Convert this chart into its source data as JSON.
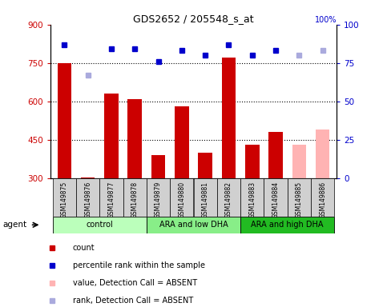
{
  "title": "GDS2652 / 205548_s_at",
  "samples": [
    "GSM149875",
    "GSM149876",
    "GSM149877",
    "GSM149878",
    "GSM149879",
    "GSM149880",
    "GSM149881",
    "GSM149882",
    "GSM149883",
    "GSM149884",
    "GSM149885",
    "GSM149886"
  ],
  "bar_values": [
    750,
    302,
    630,
    610,
    390,
    580,
    400,
    770,
    430,
    480,
    430,
    490
  ],
  "bar_colors": [
    "#cc0000",
    "#cc0000",
    "#cc0000",
    "#cc0000",
    "#cc0000",
    "#cc0000",
    "#cc0000",
    "#cc0000",
    "#cc0000",
    "#cc0000",
    "#ffb3b3",
    "#ffb3b3"
  ],
  "rank_values": [
    87,
    67,
    84,
    84,
    76,
    83,
    80,
    87,
    80,
    83,
    80,
    83
  ],
  "rank_absent": [
    false,
    true,
    false,
    false,
    false,
    false,
    false,
    false,
    false,
    false,
    true,
    true
  ],
  "ylim_left": [
    300,
    900
  ],
  "ylim_right": [
    0,
    100
  ],
  "yticks_left": [
    300,
    450,
    600,
    750,
    900
  ],
  "yticks_right": [
    0,
    25,
    50,
    75,
    100
  ],
  "grid_lines": [
    750,
    600,
    450
  ],
  "groups": [
    {
      "label": "control",
      "start": 0,
      "end": 3,
      "color": "#bbffbb"
    },
    {
      "label": "ARA and low DHA",
      "start": 4,
      "end": 7,
      "color": "#88ee88"
    },
    {
      "label": "ARA and high DHA",
      "start": 8,
      "end": 11,
      "color": "#22bb22"
    }
  ],
  "legend_items": [
    {
      "label": "count",
      "color": "#cc0000"
    },
    {
      "label": "percentile rank within the sample",
      "color": "#0000cc"
    },
    {
      "label": "value, Detection Call = ABSENT",
      "color": "#ffb3b3"
    },
    {
      "label": "rank, Detection Call = ABSENT",
      "color": "#aaaadd"
    }
  ],
  "left_axis_color": "#cc0000",
  "right_axis_color": "#0000cc",
  "bar_width": 0.6
}
